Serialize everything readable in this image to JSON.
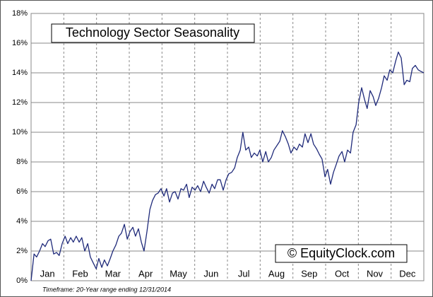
{
  "chart_data": {
    "type": "line",
    "title": "Technology Sector Seasonality",
    "watermark": "© EquityClock.com",
    "footnote": "Timeframe: 20-Year range ending 12/31/2014",
    "xlim": [
      0,
      12
    ],
    "xticks": [
      {
        "value": 0.5,
        "label": "Jan"
      },
      {
        "value": 1.5,
        "label": "Feb"
      },
      {
        "value": 2.5,
        "label": "Mar"
      },
      {
        "value": 3.5,
        "label": "Apr"
      },
      {
        "value": 4.5,
        "label": "May"
      },
      {
        "value": 5.5,
        "label": "Jun"
      },
      {
        "value": 6.5,
        "label": "Jul"
      },
      {
        "value": 7.5,
        "label": "Aug"
      },
      {
        "value": 8.5,
        "label": "Sep"
      },
      {
        "value": 9.5,
        "label": "Oct"
      },
      {
        "value": 10.5,
        "label": "Nov"
      },
      {
        "value": 11.5,
        "label": "Dec"
      }
    ],
    "ylim": [
      0,
      18
    ],
    "yticks": [
      {
        "value": 0,
        "label": "0%"
      },
      {
        "value": 2,
        "label": "2%"
      },
      {
        "value": 4,
        "label": "4%"
      },
      {
        "value": 6,
        "label": "6%"
      },
      {
        "value": 8,
        "label": "8%"
      },
      {
        "value": 10,
        "label": "10%"
      },
      {
        "value": 12,
        "label": "12%"
      },
      {
        "value": 14,
        "label": "14%"
      },
      {
        "value": 16,
        "label": "16%"
      },
      {
        "value": 18,
        "label": "18%"
      }
    ],
    "grid": true,
    "x": [
      0,
      0.09,
      0.17,
      0.26,
      0.35,
      0.43,
      0.52,
      0.6,
      0.69,
      0.78,
      0.86,
      0.95,
      1.04,
      1.12,
      1.21,
      1.29,
      1.38,
      1.47,
      1.55,
      1.64,
      1.73,
      1.81,
      1.9,
      1.99,
      2.07,
      2.16,
      2.24,
      2.33,
      2.42,
      2.5,
      2.59,
      2.68,
      2.76,
      2.85,
      2.94,
      3.02,
      3.11,
      3.19,
      3.28,
      3.37,
      3.45,
      3.54,
      3.63,
      3.71,
      3.8,
      3.88,
      3.97,
      4.06,
      4.14,
      4.23,
      4.32,
      4.4,
      4.49,
      4.58,
      4.66,
      4.75,
      4.83,
      4.92,
      5.01,
      5.09,
      5.18,
      5.27,
      5.35,
      5.44,
      5.53,
      5.61,
      5.7,
      5.78,
      5.87,
      5.96,
      6.04,
      6.13,
      6.22,
      6.3,
      6.39,
      6.47,
      6.56,
      6.65,
      6.73,
      6.82,
      6.91,
      6.99,
      7.08,
      7.17,
      7.25,
      7.34,
      7.42,
      7.51,
      7.6,
      7.68,
      7.77,
      7.86,
      7.94,
      8.03,
      8.12,
      8.2,
      8.29,
      8.37,
      8.46,
      8.55,
      8.63,
      8.72,
      8.81,
      8.89,
      8.98,
      9.06,
      9.15,
      9.24,
      9.32,
      9.41,
      9.5,
      9.58,
      9.67,
      9.76,
      9.84,
      9.93,
      10.01,
      10.1,
      10.19,
      10.27,
      10.36,
      10.45,
      10.53,
      10.62,
      10.71,
      10.79,
      10.88,
      10.96,
      11.05,
      11.14,
      11.22,
      11.31,
      11.4,
      11.48,
      11.57,
      11.65,
      11.74,
      11.83,
      11.91,
      12
    ],
    "series": [
      {
        "color": "#1f2a7a",
        "values": [
          0,
          1.8,
          1.6,
          2.0,
          2.5,
          2.3,
          2.7,
          2.8,
          1.8,
          1.9,
          1.7,
          2.5,
          3.0,
          2.5,
          2.9,
          2.6,
          3.0,
          2.6,
          2.9,
          2.0,
          2.5,
          1.6,
          1.2,
          0.8,
          1.5,
          0.9,
          1.4,
          1.0,
          1.5,
          2.0,
          2.4,
          3.0,
          3.2,
          3.8,
          2.8,
          3.3,
          3.6,
          3.0,
          3.5,
          2.6,
          2.0,
          3.3,
          4.8,
          5.4,
          5.8,
          5.9,
          6.2,
          5.7,
          6.2,
          5.3,
          5.9,
          6.0,
          5.5,
          6.2,
          6.1,
          6.5,
          5.6,
          6.3,
          6.1,
          6.4,
          6.0,
          6.7,
          6.3,
          5.9,
          6.5,
          6.2,
          6.8,
          6.8,
          6.1,
          6.8,
          7.2,
          7.3,
          7.6,
          8.3,
          8.8,
          10.0,
          8.8,
          9.0,
          8.3,
          8.6,
          8.4,
          8.8,
          8.0,
          8.7,
          8.0,
          8.3,
          8.8,
          9.1,
          9.4,
          10.1,
          9.7,
          9.2,
          8.6,
          9.0,
          8.8,
          9.2,
          9.0,
          9.9,
          9.3,
          9.9,
          9.2,
          8.9,
          8.5,
          8.2,
          7.0,
          7.5,
          6.5,
          7.3,
          7.8,
          8.4,
          8.7,
          8.0,
          8.8,
          8.6,
          10.0,
          10.5,
          12.0,
          13.0,
          12.2,
          11.6,
          12.8,
          12.4,
          11.8,
          12.3,
          13.0,
          13.8,
          13.5,
          14.2,
          14.0,
          14.8,
          15.4,
          15.0,
          13.2,
          13.5,
          13.4,
          14.3,
          14.5,
          14.2,
          14.1,
          14.0
        ]
      }
    ]
  }
}
